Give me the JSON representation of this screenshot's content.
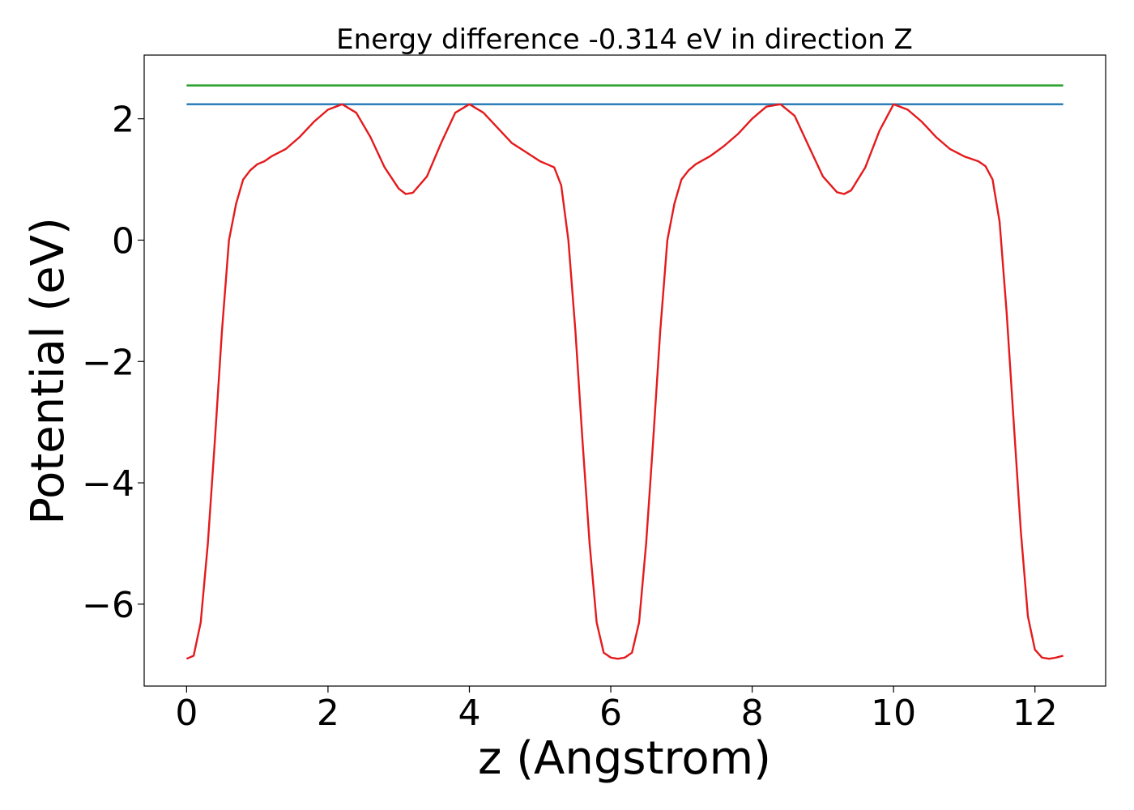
{
  "chart_data": {
    "type": "line",
    "title": "Energy difference -0.314 eV in direction Z",
    "xlabel": "z (Angstrom)",
    "ylabel": "Potential (eV)",
    "xlim": [
      -0.6,
      13.0
    ],
    "ylim": [
      -7.35,
      3.05
    ],
    "xticks": [
      0,
      2,
      4,
      6,
      8,
      10,
      12
    ],
    "xtick_labels": [
      "0",
      "2",
      "4",
      "6",
      "8",
      "10",
      "12"
    ],
    "yticks": [
      -6,
      -4,
      -2,
      0,
      2
    ],
    "ytick_labels": [
      "−6",
      "−4",
      "−2",
      "0",
      "2"
    ],
    "grid": false,
    "series": [
      {
        "color": "#2ca02c",
        "x": [
          0,
          12.4
        ],
        "y": [
          2.55,
          2.55
        ]
      },
      {
        "color": "#1f77b4",
        "x": [
          0,
          12.4
        ],
        "y": [
          2.24,
          2.24
        ]
      },
      {
        "color": "#e41a1c",
        "x": [
          0,
          0.1,
          0.2,
          0.3,
          0.4,
          0.5,
          0.6,
          0.7,
          0.8,
          0.9,
          1.0,
          1.1,
          1.2,
          1.4,
          1.6,
          1.8,
          2.0,
          2.2,
          2.4,
          2.6,
          2.8,
          3.0,
          3.1,
          3.2,
          3.4,
          3.6,
          3.8,
          4.0,
          4.2,
          4.4,
          4.6,
          4.8,
          5.0,
          5.1,
          5.2,
          5.3,
          5.4,
          5.5,
          5.6,
          5.7,
          5.8,
          5.9,
          6.0,
          6.1,
          6.2,
          6.3,
          6.4,
          6.5,
          6.6,
          6.7,
          6.8,
          6.9,
          7.0,
          7.1,
          7.2,
          7.4,
          7.6,
          7.8,
          8.0,
          8.2,
          8.4,
          8.6,
          8.8,
          9.0,
          9.2,
          9.3,
          9.4,
          9.6,
          9.8,
          10.0,
          10.2,
          10.4,
          10.6,
          10.8,
          11.0,
          11.2,
          11.3,
          11.4,
          11.5,
          11.6,
          11.7,
          11.8,
          11.9,
          12.0,
          12.1,
          12.2,
          12.3,
          12.4
        ],
        "y": [
          -6.9,
          -6.85,
          -6.3,
          -5.0,
          -3.3,
          -1.5,
          0.0,
          0.6,
          1.0,
          1.15,
          1.25,
          1.3,
          1.38,
          1.5,
          1.7,
          1.95,
          2.15,
          2.24,
          2.1,
          1.7,
          1.2,
          0.85,
          0.76,
          0.78,
          1.05,
          1.6,
          2.1,
          2.24,
          2.1,
          1.85,
          1.6,
          1.45,
          1.3,
          1.25,
          1.2,
          0.9,
          0.0,
          -1.5,
          -3.3,
          -5.0,
          -6.3,
          -6.8,
          -6.88,
          -6.9,
          -6.88,
          -6.8,
          -6.3,
          -5.0,
          -3.3,
          -1.5,
          0.0,
          0.6,
          1.0,
          1.15,
          1.25,
          1.38,
          1.55,
          1.75,
          2.0,
          2.2,
          2.24,
          2.05,
          1.55,
          1.05,
          0.79,
          0.76,
          0.82,
          1.2,
          1.8,
          2.24,
          2.15,
          1.95,
          1.7,
          1.5,
          1.38,
          1.3,
          1.22,
          1.0,
          0.3,
          -1.2,
          -3.0,
          -4.8,
          -6.2,
          -6.75,
          -6.88,
          -6.9,
          -6.88,
          -6.85
        ]
      }
    ]
  }
}
